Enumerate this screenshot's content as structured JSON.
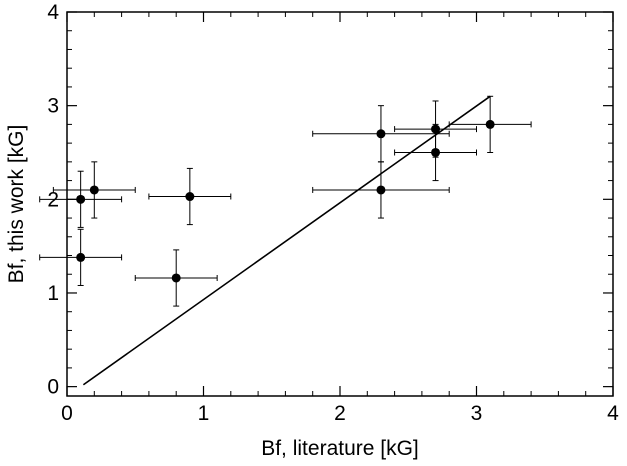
{
  "chart_data": {
    "type": "scatter",
    "xlabel": "Bf, literature [kG]",
    "ylabel": "Bf, this work [kG]",
    "xlim": [
      0,
      4
    ],
    "ylim": [
      -0.1,
      4
    ],
    "xticks": [
      "0",
      "1",
      "2",
      "3",
      "4"
    ],
    "yticks": [
      "0",
      "1",
      "2",
      "3",
      "4"
    ],
    "grid": false,
    "points": [
      {
        "x": 0.1,
        "y": 2.0,
        "xerr": 0.3,
        "yerr": 0.3
      },
      {
        "x": 0.2,
        "y": 2.1,
        "xerr": 0.3,
        "yerr": 0.3
      },
      {
        "x": 0.1,
        "y": 1.38,
        "xerr": 0.3,
        "yerr": 0.3
      },
      {
        "x": 0.9,
        "y": 2.03,
        "xerr": 0.3,
        "yerr": 0.3
      },
      {
        "x": 0.8,
        "y": 1.16,
        "xerr": 0.3,
        "yerr": 0.3
      },
      {
        "x": 2.3,
        "y": 2.7,
        "xerr": 0.5,
        "yerr": 0.3
      },
      {
        "x": 2.3,
        "y": 2.1,
        "xerr": 0.5,
        "yerr": 0.3
      },
      {
        "x": 2.7,
        "y": 2.75,
        "xerr": 0.3,
        "yerr": 0.3
      },
      {
        "x": 2.7,
        "y": 2.5,
        "xerr": 0.3,
        "yerr": 0.3
      },
      {
        "x": 3.1,
        "y": 2.8,
        "xerr": 0.3,
        "yerr": 0.3
      }
    ],
    "reference_line": {
      "x": [
        0.12,
        3.1
      ],
      "y": [
        0.02,
        3.1
      ]
    }
  }
}
